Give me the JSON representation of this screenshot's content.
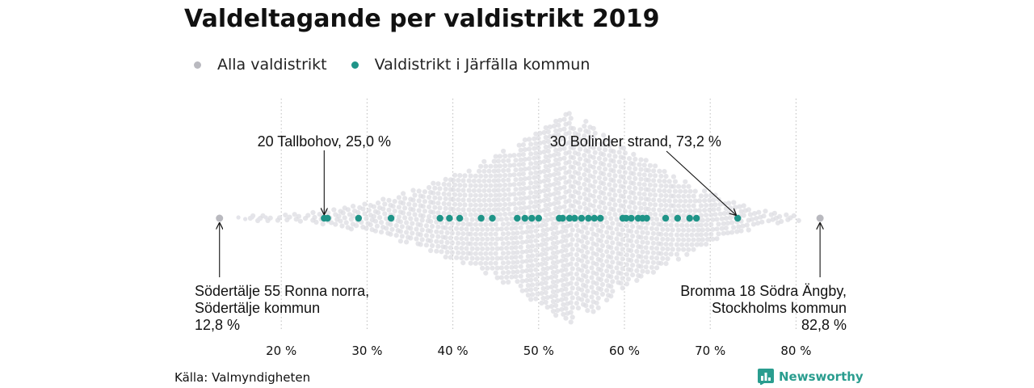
{
  "chart_data": {
    "type": "scatter",
    "title": "Valdeltagande per valdistrikt 2019",
    "xlabel": "",
    "ylabel": "",
    "xlim": [
      10,
      90
    ],
    "x_ticks": [
      20,
      30,
      40,
      50,
      60,
      70,
      80
    ],
    "x_tick_labels": [
      "20 %",
      "30 %",
      "40 %",
      "50 %",
      "60 %",
      "70 %",
      "80 %"
    ],
    "grid": "vertical dotted",
    "legend_placement": "top-left",
    "series": [
      {
        "name": "Alla valdistrikt",
        "color": "#c8c8d0",
        "distribution": "beeswarm",
        "min": 12.8,
        "max": 82.8,
        "peak": 54,
        "extreme_points": [
          12.8,
          82.8
        ]
      },
      {
        "name": "Valdistrikt i Järfälla kommun",
        "color": "#1f9488",
        "values": [
          25.0,
          25.4,
          29.0,
          32.8,
          38.5,
          39.6,
          40.8,
          43.3,
          44.6,
          47.5,
          48.4,
          49.2,
          50.0,
          52.4,
          52.8,
          53.6,
          54.2,
          55.0,
          55.8,
          56.5,
          57.2,
          59.8,
          60.2,
          60.8,
          61.6,
          62.1,
          62.6,
          64.8,
          66.2,
          67.6,
          68.4,
          73.2
        ]
      }
    ],
    "annotations": [
      {
        "lines": [
          "20 Tallbohov, 25,0 %"
        ],
        "value": 25.0
      },
      {
        "lines": [
          "30 Bolinder strand, 73,2 %"
        ],
        "value": 73.2
      },
      {
        "lines": [
          "Södertälje 55 Ronna norra,",
          "Södertälje kommun",
          "12,8 %"
        ],
        "value": 12.8
      },
      {
        "lines": [
          "Bromma 18 Södra Ängby,",
          "Stockholms kommun",
          "82,8 %"
        ],
        "value": 82.8
      }
    ]
  },
  "footer": {
    "source": "Källa: Valmyndigheten",
    "brand": "Newsworthy"
  }
}
